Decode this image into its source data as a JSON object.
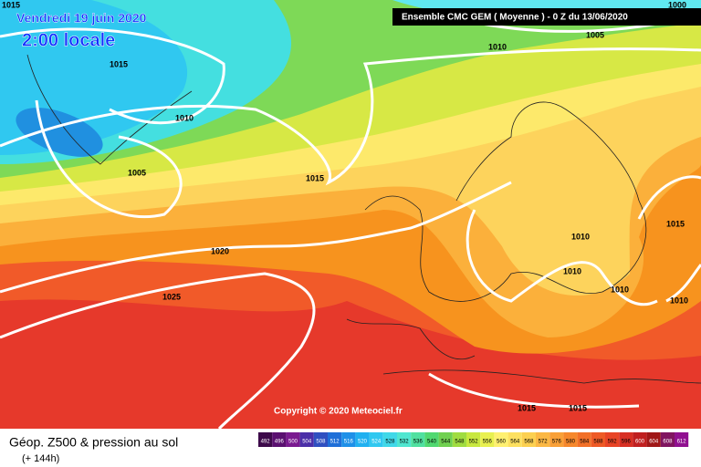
{
  "map": {
    "date": "Vendredi 19 juin 2020",
    "time": "2:00 locale",
    "header": "Ensemble CMC GEM ( Moyenne )  -  0 Z du 13/06/2020",
    "copyright": "Copyright © 2020 Meteociel.fr",
    "isobar_labels": [
      1015,
      1000,
      1005,
      1010,
      1015,
      1010,
      1005,
      1015,
      1020,
      1025,
      1010,
      1010,
      1010,
      1015,
      1010,
      1015,
      1015
    ]
  },
  "footer": {
    "title": "Géop. Z500 & pression au sol",
    "subtitle": "(+ 144h)",
    "scale_labels": [
      492,
      496,
      500,
      504,
      508,
      512,
      516,
      520,
      524,
      528,
      532,
      536,
      540,
      544,
      548,
      552,
      556,
      560,
      564,
      568,
      572,
      576,
      580,
      584,
      588,
      592,
      596,
      600,
      604,
      608,
      612
    ],
    "scale_colors": [
      "#3d0a4a",
      "#5a1070",
      "#7a1a90",
      "#4b2fa8",
      "#2f4fc0",
      "#1f6fd8",
      "#1e90e8",
      "#20b0f0",
      "#30c8f0",
      "#40d8e8",
      "#50e6d0",
      "#50e0a0",
      "#50d870",
      "#70d050",
      "#a0dc40",
      "#c8e840",
      "#e8f050",
      "#fff070",
      "#fde060",
      "#fcd050",
      "#fbb844",
      "#f9a038",
      "#f6882c",
      "#f27028",
      "#ee5a26",
      "#e84426",
      "#d83024",
      "#c02020",
      "#a01818",
      "#801560",
      "#901090"
    ]
  }
}
